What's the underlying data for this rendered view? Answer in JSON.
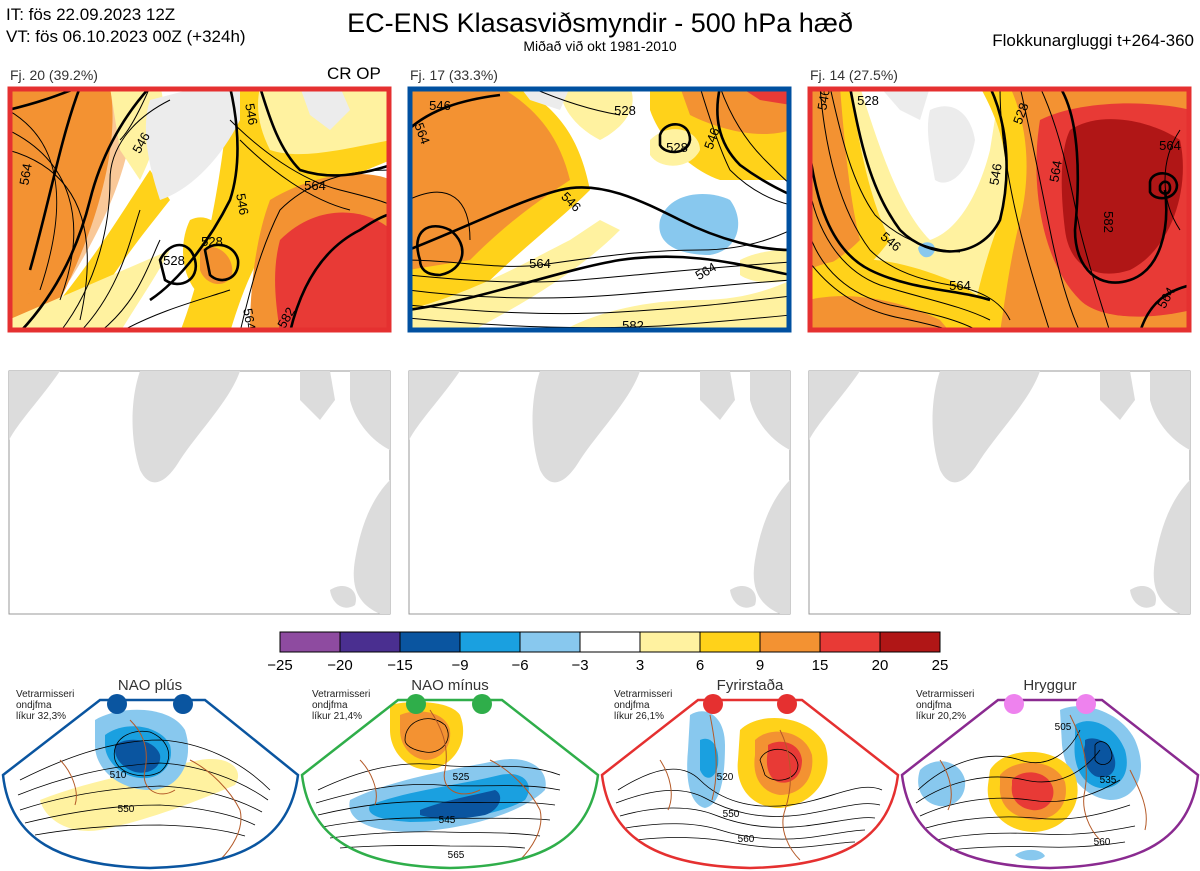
{
  "header": {
    "init_time": "IT: fös 22.09.2023 12Z",
    "valid_time": "VT: fös 06.10.2023 00Z  (+324h)",
    "title": "EC-ENS Klasasviðsmyndir - 500 hPa hæð",
    "subtitle": "Miðað við okt 1981-2010",
    "window": "Flokkunargluggi t+264-360"
  },
  "clusters": [
    {
      "label": "Fj. 20 (39.2%)",
      "flag": "CR OP",
      "border_color": "#e53030",
      "contour_labels": [
        "564",
        "546",
        "528",
        "528",
        "546",
        "564",
        "546",
        "564",
        "582"
      ]
    },
    {
      "label": "Fj. 17 (33.3%)",
      "flag": "",
      "border_color": "#0050a0",
      "contour_labels": [
        "546",
        "528",
        "528",
        "546",
        "546",
        "564",
        "564",
        "564",
        "582"
      ]
    },
    {
      "label": "Fj. 14 (27.5%)",
      "flag": "",
      "border_color": "#e53030",
      "contour_labels": [
        "546",
        "528",
        "528",
        "546",
        "564",
        "546",
        "564",
        "582",
        "564",
        "564"
      ]
    }
  ],
  "colorbar": {
    "ticks": [
      "−25",
      "−20",
      "−15",
      "−9",
      "−6",
      "−3",
      "3",
      "6",
      "9",
      "15",
      "20",
      "25"
    ],
    "colors": [
      "#8e4ba0",
      "#4a2f90",
      "#0a55a0",
      "#1aa0e0",
      "#88c8ee",
      "#ffffff",
      "#fff2a0",
      "#ffd21a",
      "#f39232",
      "#e83a36",
      "#b01616"
    ]
  },
  "regimes": [
    {
      "name": "NAO plús",
      "note": [
        "Vetrarmisseri",
        "ondjfma",
        "líkur 32,3%"
      ],
      "border_color": "#0a55a0",
      "dot_color": "#0a55a0",
      "labels": [
        "510",
        "550"
      ]
    },
    {
      "name": "NAO mínus",
      "note": [
        "Vetrarmisseri",
        "ondjfma",
        "líkur 21,4%"
      ],
      "border_color": "#2fae4a",
      "dot_color": "#2fae4a",
      "labels": [
        "525",
        "545",
        "565"
      ]
    },
    {
      "name": "Fyrirstaða",
      "note": [
        "Vetrarmisseri",
        "ondjfma",
        "líkur 26,1%"
      ],
      "border_color": "#e53030",
      "dot_color": "#e53030",
      "labels": [
        "520",
        "550",
        "560"
      ]
    },
    {
      "name": "Hryggur",
      "note": [
        "Vetrarmisseri",
        "ondjfma",
        "líkur 20,2%"
      ],
      "border_color": "#8a2a90",
      "dot_color": "#ee82ee",
      "labels": [
        "505",
        "535",
        "560"
      ]
    }
  ]
}
